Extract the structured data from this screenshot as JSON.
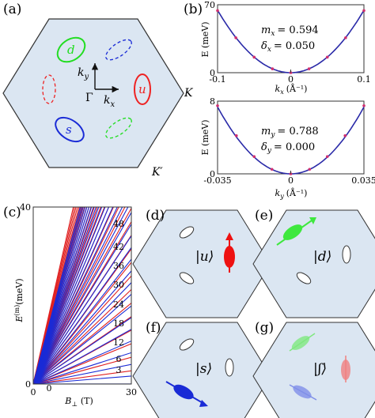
{
  "panels": {
    "a": {
      "label": "(a)",
      "k_label": "K",
      "kprime_label": "K′",
      "gamma_label": "Γ",
      "kx_label": "k",
      "kx_sub": "x",
      "ky_label": "k",
      "ky_sub": "y",
      "valleys": [
        {
          "name": "d",
          "color": "#22dd22"
        },
        {
          "name": "u",
          "color": "#ee2222"
        },
        {
          "name": "s",
          "color": "#1a2bd6"
        }
      ]
    },
    "b": {
      "label": "(b)"
    },
    "c": {
      "label": "(c)"
    },
    "d": {
      "label": "(d)",
      "ket": "|u⟩"
    },
    "e": {
      "label": "(e)",
      "ket": "|d⟩"
    },
    "f": {
      "label": "(f)",
      "ket": "|s⟩"
    },
    "g": {
      "label": "(g)",
      "ket": "|ʃ⟩"
    }
  },
  "colors": {
    "hexagon_fill": "#dbe6f2",
    "d_valley": "#22dd22",
    "u_valley": "#ee2222",
    "s_valley": "#1a2bd6",
    "fit_curve": "#2a2aa8",
    "data_points": "#d03070"
  },
  "chart_data": [
    {
      "type": "line",
      "panel": "b-top",
      "xlabel": "k",
      "xlabel_sub": "x",
      "xlabel_unit": "(Å⁻¹)",
      "ylabel": "E (meV)",
      "xlim": [
        -0.1,
        0.1
      ],
      "ylim": [
        0,
        70
      ],
      "xticks": [
        "-0.1",
        "0",
        "0.1"
      ],
      "yticks": [
        "0",
        "70"
      ],
      "annotation": {
        "m_label": "m",
        "m_sub": "x",
        "m_value": "= 0.594",
        "d_label": "δ",
        "d_sub": "x",
        "d_value": "= 0.050"
      },
      "series": [
        {
          "values_x": [
            -0.1,
            -0.075,
            -0.05,
            -0.025,
            0,
            0.025,
            0.05,
            0.075,
            0.1
          ],
          "values_y": [
            64,
            36,
            16,
            4,
            0,
            4,
            16,
            36,
            64
          ]
        }
      ]
    },
    {
      "type": "line",
      "panel": "b-bottom",
      "xlabel": "k",
      "xlabel_sub": "y",
      "xlabel_unit": "(Å⁻¹)",
      "ylabel": "E (meV)",
      "xlim": [
        -0.035,
        0.035
      ],
      "ylim": [
        0,
        8
      ],
      "xticks": [
        "-0.035",
        "0",
        "0.035"
      ],
      "yticks": [
        "0",
        "8"
      ],
      "annotation": {
        "m_label": "m",
        "m_sub": "y",
        "m_value": "= 0.788",
        "d_label": "δ",
        "d_sub": "y",
        "d_value": "= 0.000"
      },
      "series": [
        {
          "values_x": [
            -0.035,
            -0.026,
            -0.0175,
            -0.009,
            0,
            0.009,
            0.0175,
            0.026,
            0.035
          ],
          "values_y": [
            7.5,
            4.2,
            1.9,
            0.5,
            0,
            0.5,
            1.9,
            4.2,
            7.5
          ]
        }
      ]
    },
    {
      "type": "line",
      "panel": "c",
      "xlabel": "B",
      "xlabel_sub": "⊥",
      "xlabel_unit": "(T)",
      "ylabel": "E",
      "ylabel_sup": "(m)",
      "ylabel_unit": "(meV)",
      "xlim": [
        0,
        30
      ],
      "ylim": [
        0,
        40
      ],
      "xticks": [
        "0",
        "30"
      ],
      "yticks": [
        "0",
        "40"
      ],
      "level_labels": [
        "0",
        "3",
        "6",
        "12",
        "18",
        "24",
        "30",
        "36",
        "42",
        "48"
      ],
      "slopes_meV_per_T": {
        "blue_start": 0.06,
        "blue_step": 0.088,
        "count": 32
      }
    }
  ]
}
